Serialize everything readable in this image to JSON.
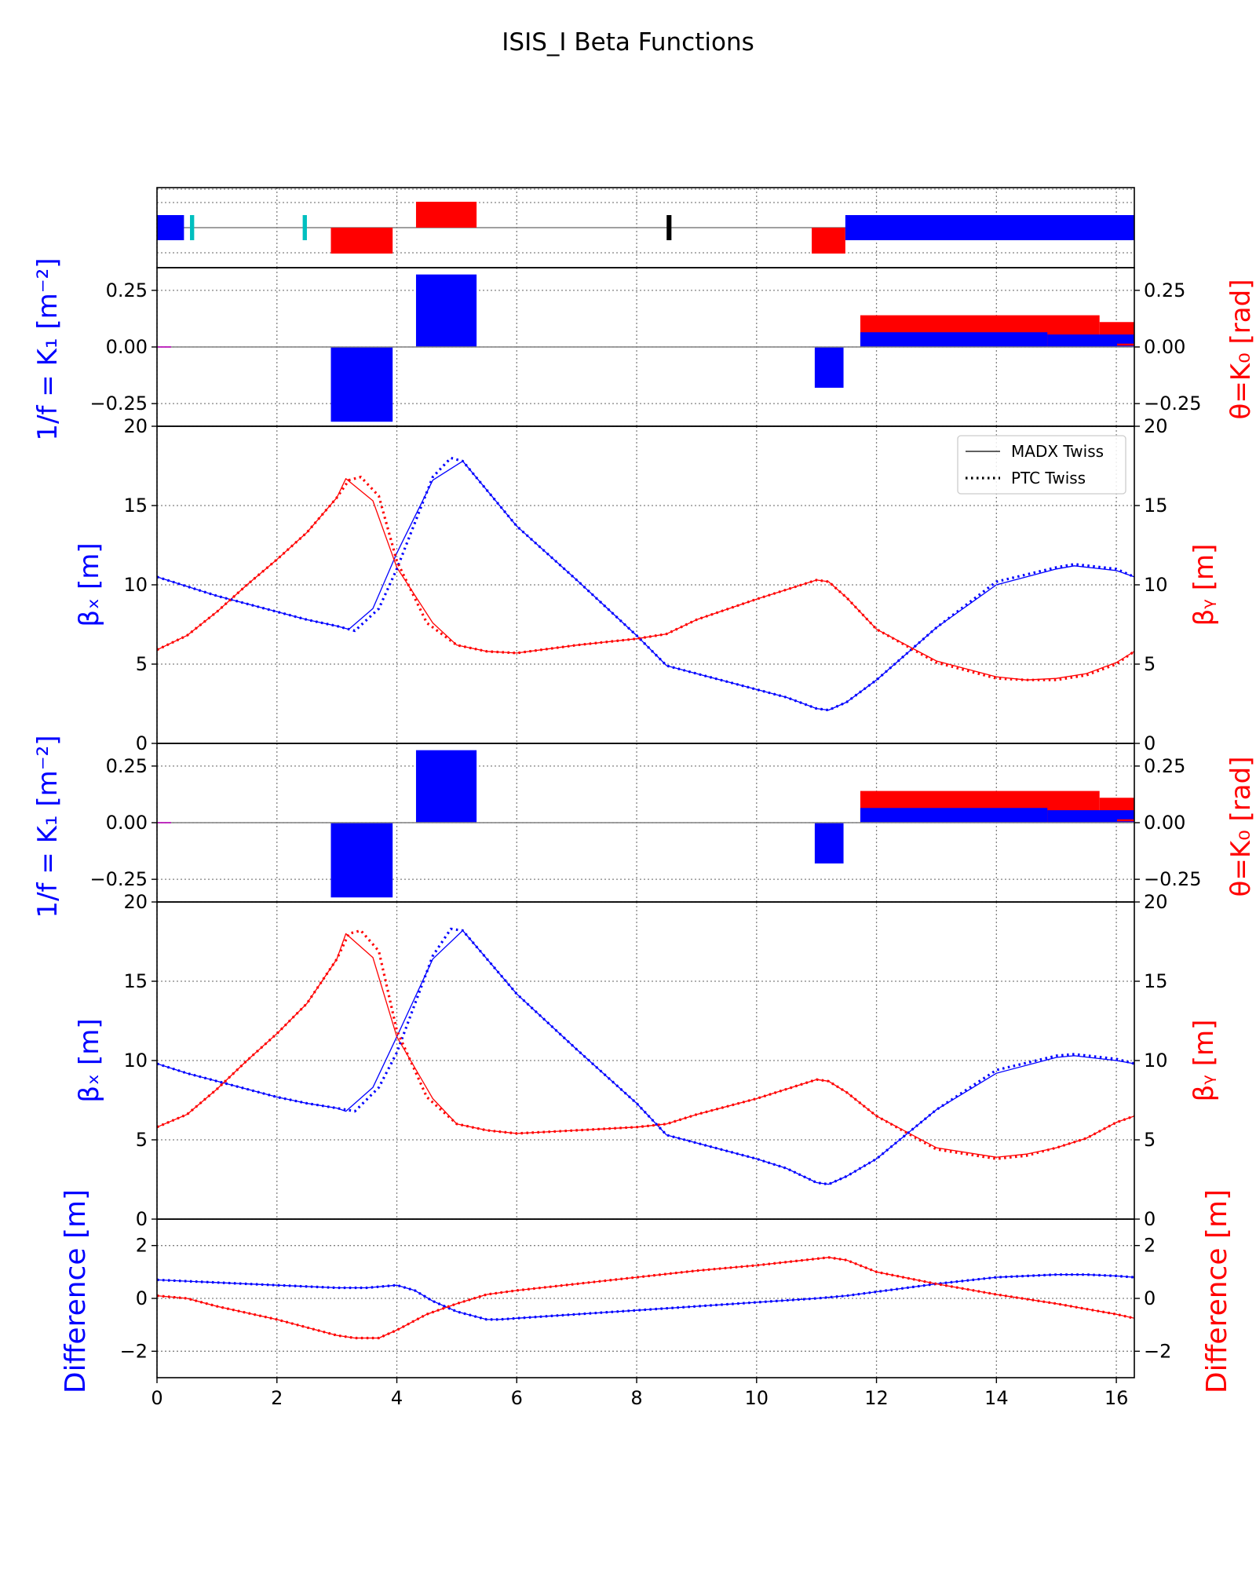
{
  "figure": {
    "title": "ISIS_I Beta Functions",
    "legend": [
      "MADX Twiss",
      "PTC Twiss"
    ]
  },
  "colors": {
    "blue": "#0000ff",
    "red": "#ff0000",
    "cyan": "#00bfbf",
    "black": "#000000",
    "grid": "#808080"
  },
  "labels": {
    "k1_ylabel": "1/f = K₁ [m⁻²]",
    "k0_ylabel": "θ=K₀ [rad]",
    "betax_ylabel": "βₓ [m]",
    "betay_ylabel": "βᵧ [m]",
    "diff_ylabel": "Difference [m]"
  },
  "chart_data": [
    {
      "type": "bar",
      "name": "lattice layout",
      "xlim": [
        0,
        16.3
      ],
      "elements": [
        {
          "kind": "sbend",
          "s0": 0.0,
          "s1": 0.45,
          "side": "center"
        },
        {
          "kind": "marker",
          "s0": 0.55,
          "s1": 0.62,
          "side": "center",
          "color": "cyan"
        },
        {
          "kind": "marker",
          "s0": 2.43,
          "s1": 2.5,
          "side": "center",
          "color": "cyan"
        },
        {
          "kind": "quad_defocus",
          "s0": 2.9,
          "s1": 3.93,
          "side": "below"
        },
        {
          "kind": "quad_focus",
          "s0": 4.32,
          "s1": 5.33,
          "side": "above"
        },
        {
          "kind": "marker",
          "s0": 8.5,
          "s1": 8.58,
          "side": "center",
          "color": "black"
        },
        {
          "kind": "quad_defocus",
          "s0": 10.92,
          "s1": 11.48,
          "side": "below"
        },
        {
          "kind": "sbend",
          "s0": 11.48,
          "s1": 16.3,
          "side": "center"
        }
      ]
    },
    {
      "type": "bar",
      "name": "strengths (upper)",
      "ylim": [
        -0.35,
        0.35
      ],
      "yticks": [
        -0.25,
        0.0,
        0.25
      ],
      "k1": [
        {
          "s0": 2.9,
          "s1": 3.93,
          "value": -0.33
        },
        {
          "s0": 4.32,
          "s1": 5.33,
          "value": 0.32
        },
        {
          "s0": 10.97,
          "s1": 11.45,
          "value": -0.18
        },
        {
          "s0": 11.73,
          "s1": 14.85,
          "value": 0.065
        },
        {
          "s0": 14.85,
          "s1": 16.3,
          "value": 0.055
        }
      ],
      "k0": [
        {
          "s0": 11.73,
          "s1": 15.72,
          "value": 0.14
        },
        {
          "s0": 15.72,
          "s1": 16.3,
          "value": 0.11
        }
      ]
    },
    {
      "type": "line",
      "name": "beta functions (upper)",
      "xlim": [
        0,
        16.3
      ],
      "ylim": [
        0,
        20
      ],
      "yticks": [
        0,
        5,
        10,
        15,
        20
      ],
      "betax_madx": {
        "x": [
          0,
          0.5,
          1,
          2,
          2.5,
          3,
          3.2,
          3.6,
          4,
          4.6,
          5.1,
          6,
          7,
          8,
          8.5,
          9,
          10,
          10.5,
          11,
          11.2,
          11.5,
          12,
          13,
          14,
          15,
          15.3,
          16,
          16.3
        ],
        "y": [
          10.5,
          9.9,
          9.3,
          8.3,
          7.8,
          7.4,
          7.2,
          8.5,
          12,
          16.6,
          17.8,
          13.7,
          10.3,
          6.8,
          4.9,
          4.4,
          3.4,
          2.9,
          2.2,
          2.1,
          2.6,
          4,
          7.3,
          10,
          11,
          11.2,
          10.9,
          10.5
        ]
      },
      "betax_ptc": {
        "x": [
          0,
          0.5,
          1,
          2,
          2.5,
          3,
          3.3,
          3.7,
          4,
          4.6,
          4.9,
          5.1,
          6,
          7,
          8,
          8.5,
          9,
          10,
          10.5,
          11,
          11.2,
          11.5,
          12,
          13,
          14,
          15,
          15.3,
          16,
          16.3
        ],
        "y": [
          10.5,
          9.9,
          9.3,
          8.3,
          7.8,
          7.4,
          7.1,
          8.5,
          11,
          16.8,
          18,
          17.8,
          13.7,
          10.3,
          6.8,
          4.9,
          4.4,
          3.4,
          2.9,
          2.2,
          2.1,
          2.6,
          4,
          7.3,
          10.2,
          11.1,
          11.3,
          11,
          10.5
        ]
      },
      "betay_madx": {
        "x": [
          0,
          0.5,
          1,
          1.5,
          2,
          2.5,
          3,
          3.15,
          3.6,
          4,
          4.6,
          5,
          5.5,
          6,
          7,
          8,
          8.5,
          9,
          10,
          10.5,
          11,
          11.2,
          11.5,
          12,
          13,
          14,
          14.5,
          15,
          15.5,
          16,
          16.3
        ],
        "y": [
          5.9,
          6.8,
          8.3,
          10,
          11.6,
          13.3,
          15.5,
          16.7,
          15.3,
          11.1,
          7.6,
          6.2,
          5.8,
          5.7,
          6.2,
          6.6,
          6.9,
          7.8,
          9.1,
          9.7,
          10.3,
          10.2,
          9.2,
          7.2,
          5.2,
          4.2,
          4,
          4.1,
          4.4,
          5.1,
          5.8
        ]
      },
      "betay_ptc": {
        "x": [
          0,
          0.5,
          1,
          1.5,
          2,
          2.5,
          3,
          3.2,
          3.4,
          3.7,
          4,
          4.5,
          5,
          5.5,
          6,
          7,
          8,
          8.5,
          9,
          10,
          10.5,
          11,
          11.2,
          11.5,
          12,
          13,
          14,
          14.5,
          15,
          15.5,
          16,
          16.3
        ],
        "y": [
          5.9,
          6.8,
          8.3,
          10,
          11.6,
          13.3,
          15.5,
          16.6,
          16.8,
          15.6,
          11.5,
          7.6,
          6.2,
          5.8,
          5.7,
          6.2,
          6.6,
          6.9,
          7.8,
          9.1,
          9.7,
          10.3,
          10.2,
          9.2,
          7.2,
          5.1,
          4.1,
          4,
          4,
          4.3,
          5,
          5.8
        ]
      }
    },
    {
      "type": "bar",
      "name": "strengths (lower)",
      "ylim": [
        -0.35,
        0.35
      ],
      "yticks": [
        -0.25,
        0.0,
        0.25
      ],
      "k1": [
        {
          "s0": 2.9,
          "s1": 3.93,
          "value": -0.33
        },
        {
          "s0": 4.32,
          "s1": 5.33,
          "value": 0.32
        },
        {
          "s0": 10.97,
          "s1": 11.45,
          "value": -0.18
        },
        {
          "s0": 11.73,
          "s1": 14.85,
          "value": 0.065
        },
        {
          "s0": 14.85,
          "s1": 16.3,
          "value": 0.055
        }
      ],
      "k0": [
        {
          "s0": 11.73,
          "s1": 15.72,
          "value": 0.14
        },
        {
          "s0": 15.72,
          "s1": 16.3,
          "value": 0.11
        }
      ]
    },
    {
      "type": "line",
      "name": "beta functions (lower)",
      "xlim": [
        0,
        16.3
      ],
      "ylim": [
        0,
        20
      ],
      "yticks": [
        0,
        5,
        10,
        15,
        20
      ],
      "betax_madx": {
        "x": [
          0,
          0.5,
          1,
          2,
          2.5,
          3,
          3.15,
          3.6,
          4,
          4.6,
          5.1,
          6,
          7,
          8,
          8.5,
          9,
          10,
          10.5,
          11,
          11.2,
          11.5,
          12,
          13,
          14,
          15,
          15.3,
          16,
          16.3
        ],
        "y": [
          9.8,
          9.2,
          8.7,
          7.7,
          7.3,
          7,
          6.8,
          8.3,
          11.5,
          16.4,
          18.2,
          14.2,
          10.7,
          7.3,
          5.3,
          4.8,
          3.8,
          3.2,
          2.3,
          2.2,
          2.7,
          3.8,
          6.9,
          9.2,
          10.2,
          10.3,
          10,
          9.8
        ]
      },
      "betax_ptc": {
        "x": [
          0,
          0.5,
          1,
          2,
          2.5,
          3,
          3.3,
          3.7,
          4,
          4.6,
          4.9,
          5.1,
          6,
          7,
          8,
          8.5,
          9,
          10,
          10.5,
          11,
          11.2,
          11.5,
          12,
          13,
          14,
          15,
          15.3,
          16,
          16.3
        ],
        "y": [
          9.8,
          9.2,
          8.7,
          7.7,
          7.3,
          7,
          6.8,
          8.3,
          10.5,
          16.6,
          18.3,
          18.2,
          14.2,
          10.7,
          7.3,
          5.3,
          4.8,
          3.8,
          3.2,
          2.3,
          2.2,
          2.7,
          3.8,
          6.9,
          9.4,
          10.3,
          10.4,
          10.1,
          9.8
        ]
      },
      "betay_madx": {
        "x": [
          0,
          0.5,
          1,
          1.5,
          2,
          2.5,
          3,
          3.15,
          3.6,
          4,
          4.6,
          5,
          5.5,
          6,
          7,
          8,
          8.5,
          9,
          10,
          10.5,
          11,
          11.2,
          11.5,
          12,
          13,
          14,
          14.5,
          15,
          15.5,
          16,
          16.3
        ],
        "y": [
          5.8,
          6.6,
          8.2,
          10,
          11.7,
          13.6,
          16.4,
          18,
          16.5,
          11.5,
          7.6,
          6,
          5.6,
          5.4,
          5.6,
          5.8,
          6,
          6.6,
          7.6,
          8.2,
          8.8,
          8.7,
          8,
          6.5,
          4.5,
          3.9,
          4.1,
          4.5,
          5.1,
          6.1,
          6.5
        ]
      },
      "betay_ptc": {
        "x": [
          0,
          0.5,
          1,
          1.5,
          2,
          2.5,
          3,
          3.2,
          3.4,
          3.7,
          4,
          4.5,
          5,
          5.5,
          6,
          7,
          8,
          8.5,
          9,
          10,
          10.5,
          11,
          11.2,
          11.5,
          12,
          13,
          14,
          14.5,
          15,
          15.5,
          16,
          16.3
        ],
        "y": [
          5.8,
          6.6,
          8.2,
          10,
          11.7,
          13.6,
          16.4,
          18,
          18.2,
          16.9,
          11.9,
          7.7,
          6,
          5.6,
          5.4,
          5.6,
          5.8,
          6,
          6.6,
          7.6,
          8.2,
          8.8,
          8.7,
          8,
          6.5,
          4.4,
          3.8,
          4,
          4.5,
          5.1,
          6.1,
          6.5
        ]
      }
    },
    {
      "type": "line",
      "name": "difference",
      "xlim": [
        0,
        16.3
      ],
      "xticks": [
        0,
        2,
        4,
        6,
        8,
        10,
        12,
        14,
        16
      ],
      "ylim": [
        -3,
        3
      ],
      "yticks": [
        -2,
        0,
        2
      ],
      "diffx_madx": {
        "x": [
          0,
          1,
          2,
          3,
          3.5,
          4,
          4.3,
          4.6,
          5,
          5.5,
          5.7,
          6,
          7,
          8,
          9,
          10,
          11,
          11.5,
          12,
          13,
          14,
          15,
          15.5,
          16,
          16.3
        ],
        "y": [
          0.7,
          0.6,
          0.5,
          0.4,
          0.4,
          0.5,
          0.3,
          -0.1,
          -0.5,
          -0.8,
          -0.8,
          -0.75,
          -0.6,
          -0.45,
          -0.3,
          -0.15,
          0,
          0.1,
          0.25,
          0.55,
          0.8,
          0.9,
          0.9,
          0.85,
          0.8
        ]
      },
      "diffx_ptc": {
        "x": [
          0,
          1,
          2,
          3,
          3.5,
          4,
          4.3,
          4.6,
          5,
          5.5,
          5.7,
          6,
          7,
          8,
          9,
          10,
          11,
          11.5,
          12,
          13,
          14,
          15,
          15.5,
          16,
          16.3
        ],
        "y": [
          0.7,
          0.6,
          0.5,
          0.4,
          0.4,
          0.5,
          0.3,
          -0.1,
          -0.5,
          -0.8,
          -0.8,
          -0.75,
          -0.6,
          -0.45,
          -0.3,
          -0.15,
          0,
          0.1,
          0.25,
          0.55,
          0.8,
          0.9,
          0.9,
          0.85,
          0.8
        ]
      },
      "diffy_madx": {
        "x": [
          0,
          0.5,
          1,
          2,
          3,
          3.3,
          3.7,
          4,
          4.5,
          5,
          5.5,
          6,
          7,
          8,
          9,
          10,
          11,
          11.2,
          11.5,
          12,
          13,
          14,
          15,
          15.5,
          16,
          16.3
        ],
        "y": [
          0.1,
          0,
          -0.3,
          -0.8,
          -1.4,
          -1.5,
          -1.5,
          -1.2,
          -0.6,
          -0.2,
          0.15,
          0.3,
          0.55,
          0.8,
          1.05,
          1.25,
          1.5,
          1.55,
          1.45,
          1,
          0.55,
          0.15,
          -0.2,
          -0.4,
          -0.6,
          -0.75
        ]
      },
      "diffy_ptc": {
        "x": [
          0,
          0.5,
          1,
          2,
          3,
          3.3,
          3.7,
          4,
          4.5,
          5,
          5.5,
          6,
          7,
          8,
          9,
          10,
          11,
          11.2,
          11.5,
          12,
          13,
          14,
          15,
          15.5,
          16,
          16.3
        ],
        "y": [
          0.1,
          0,
          -0.3,
          -0.8,
          -1.4,
          -1.5,
          -1.5,
          -1.2,
          -0.6,
          -0.2,
          0.15,
          0.3,
          0.55,
          0.8,
          1.05,
          1.25,
          1.5,
          1.55,
          1.45,
          1,
          0.55,
          0.15,
          -0.2,
          -0.4,
          -0.6,
          -0.75
        ]
      }
    }
  ]
}
